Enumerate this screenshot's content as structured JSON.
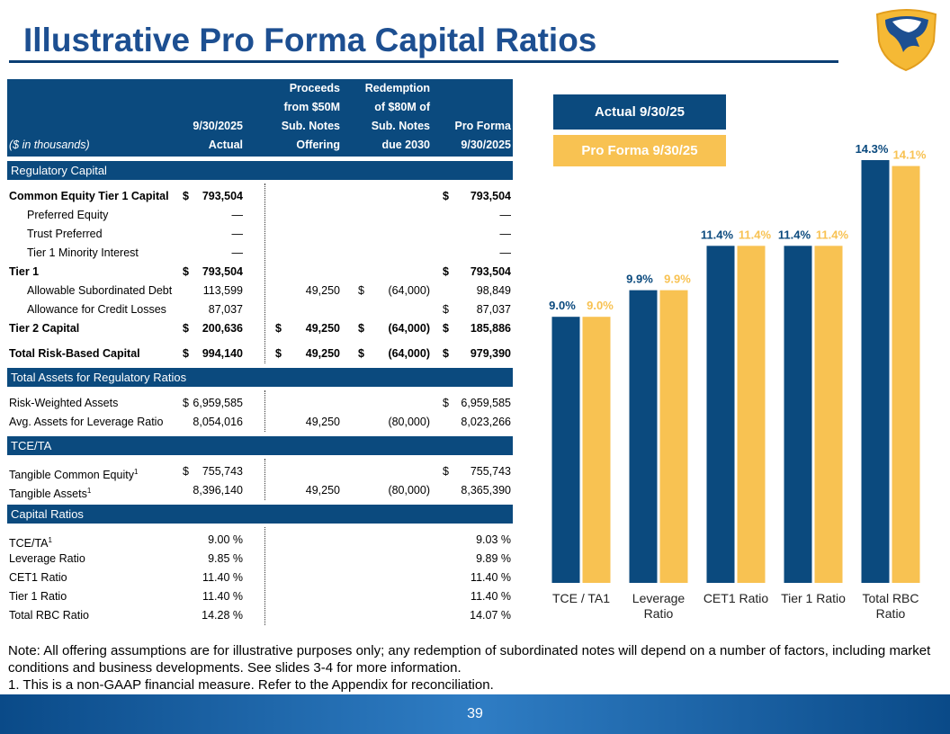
{
  "header": {
    "title": "Illustrative Pro Forma Capital Ratios"
  },
  "table": {
    "columns": [
      [
        "($ in thousands)"
      ],
      [
        "9/30/2025",
        "Actual"
      ],
      [
        "Proceeds",
        "from $50M",
        "Sub. Notes",
        "Offering"
      ],
      [
        "Redemption",
        "of $80M of",
        "Sub. Notes",
        "due 2030"
      ],
      [
        "Pro Forma",
        "9/30/2025"
      ]
    ],
    "sections": [
      {
        "title": "Regulatory Capital",
        "rows": [
          {
            "label": "Common Equity Tier 1 Capital",
            "bold": true,
            "cells": [
              {
                "sign": "$",
                "value": "793,504"
              },
              null,
              null,
              {
                "sign": "$",
                "value": "793,504"
              }
            ]
          },
          {
            "label": "Preferred Equity",
            "cells": [
              "—",
              null,
              null,
              "—"
            ]
          },
          {
            "label": "Trust Preferred",
            "cells": [
              "—",
              null,
              null,
              "—"
            ]
          },
          {
            "label": "Tier 1 Minority Interest",
            "cells": [
              "—",
              null,
              null,
              "—"
            ]
          },
          {
            "label": "Tier 1",
            "bold": true,
            "cells": [
              {
                "sign": "$",
                "value": "793,504"
              },
              null,
              null,
              {
                "sign": "$",
                "value": "793,504"
              }
            ]
          },
          {
            "label": "Allowable Subordinated Debt",
            "cells": [
              "113,599",
              "49,250",
              {
                "sign": "$",
                "value": "(64,000)"
              },
              "98,849"
            ]
          },
          {
            "label": "Allowance for Credit Losses",
            "cells": [
              "87,037",
              null,
              null,
              {
                "sign": "$",
                "value": "87,037"
              }
            ]
          },
          {
            "label": "Tier 2 Capital",
            "bold": true,
            "cells": [
              {
                "sign": "$",
                "value": "200,636"
              },
              {
                "sign": "$",
                "value": "49,250"
              },
              {
                "sign": "$",
                "value": "(64,000)"
              },
              {
                "sign": "$",
                "value": "185,886"
              }
            ]
          },
          {
            "label": "Total Risk-Based Capital",
            "bold": true,
            "cells": [
              {
                "sign": "$",
                "value": "994,140"
              },
              {
                "sign": "$",
                "value": "49,250"
              },
              {
                "sign": "$",
                "value": "(64,000)"
              },
              {
                "sign": "$",
                "value": "979,390"
              }
            ]
          }
        ]
      },
      {
        "title": "Total Assets for Regulatory Ratios",
        "rows": [
          {
            "label": "Risk-Weighted Assets",
            "cells": [
              {
                "sign": "$",
                "value": "6,959,585"
              },
              null,
              null,
              {
                "sign": "$",
                "value": "6,959,585"
              }
            ]
          },
          {
            "label": "Avg. Assets for Leverage Ratio",
            "cells": [
              "8,054,016",
              "49,250",
              "(80,000)",
              "8,023,266"
            ]
          }
        ]
      },
      {
        "title": "TCE/TA",
        "rows": [
          {
            "label": "Tangible Common Equity",
            "note": "1",
            "cells": [
              {
                "sign": "$",
                "value": "755,743"
              },
              null,
              null,
              {
                "sign": "$",
                "value": "755,743"
              }
            ]
          },
          {
            "label": "Tangible Assets",
            "note": "1",
            "cells": [
              "8,396,140",
              "49,250",
              "(80,000)",
              "8,365,390"
            ]
          }
        ]
      },
      {
        "title": "Capital Ratios",
        "rows": [
          {
            "label": "TCE/TA",
            "note": "1",
            "cells": [
              "9.00 %",
              null,
              null,
              "9.03 %"
            ]
          },
          {
            "label": "Leverage Ratio",
            "cells": [
              "9.85 %",
              null,
              null,
              "9.89 %"
            ]
          },
          {
            "label": "CET1 Ratio",
            "cells": [
              "11.40 %",
              null,
              null,
              "11.40 %"
            ]
          },
          {
            "label": "Tier 1 Ratio",
            "cells": [
              "11.40 %",
              null,
              null,
              "11.40 %"
            ]
          },
          {
            "label": "Total RBC Ratio",
            "cells": [
              "14.28 %",
              null,
              null,
              "14.07 %"
            ]
          }
        ]
      }
    ]
  },
  "chart_data": {
    "type": "bar",
    "categories": [
      "TCE / TA1",
      "Leverage Ratio",
      "CET1 Ratio",
      "Tier 1 Ratio",
      "Total RBC Ratio"
    ],
    "series": [
      {
        "name": "Actual 9/30/25",
        "color": "#0b4a7e",
        "values": [
          9.0,
          9.9,
          11.4,
          11.4,
          14.3
        ],
        "value_labels": [
          "9.0%",
          "9.9%",
          "11.4%",
          "11.4%",
          "14.3%"
        ]
      },
      {
        "name": "Pro Forma 9/30/25",
        "color": "#f8c252",
        "values": [
          9.0,
          9.9,
          11.4,
          11.4,
          14.1
        ],
        "value_labels": [
          "9.0%",
          "9.9%",
          "11.4%",
          "11.4%",
          "14.1%"
        ]
      }
    ]
  },
  "notes": [
    "Note: All offering assumptions are for illustrative purposes only; any redemption of subordinated notes will depend on a number of factors, including market conditions and business developments. See slides 3-4 for more information.",
    "1. This is a non-GAAP financial measure. Refer to the Appendix for reconciliation."
  ],
  "page_number": "39"
}
